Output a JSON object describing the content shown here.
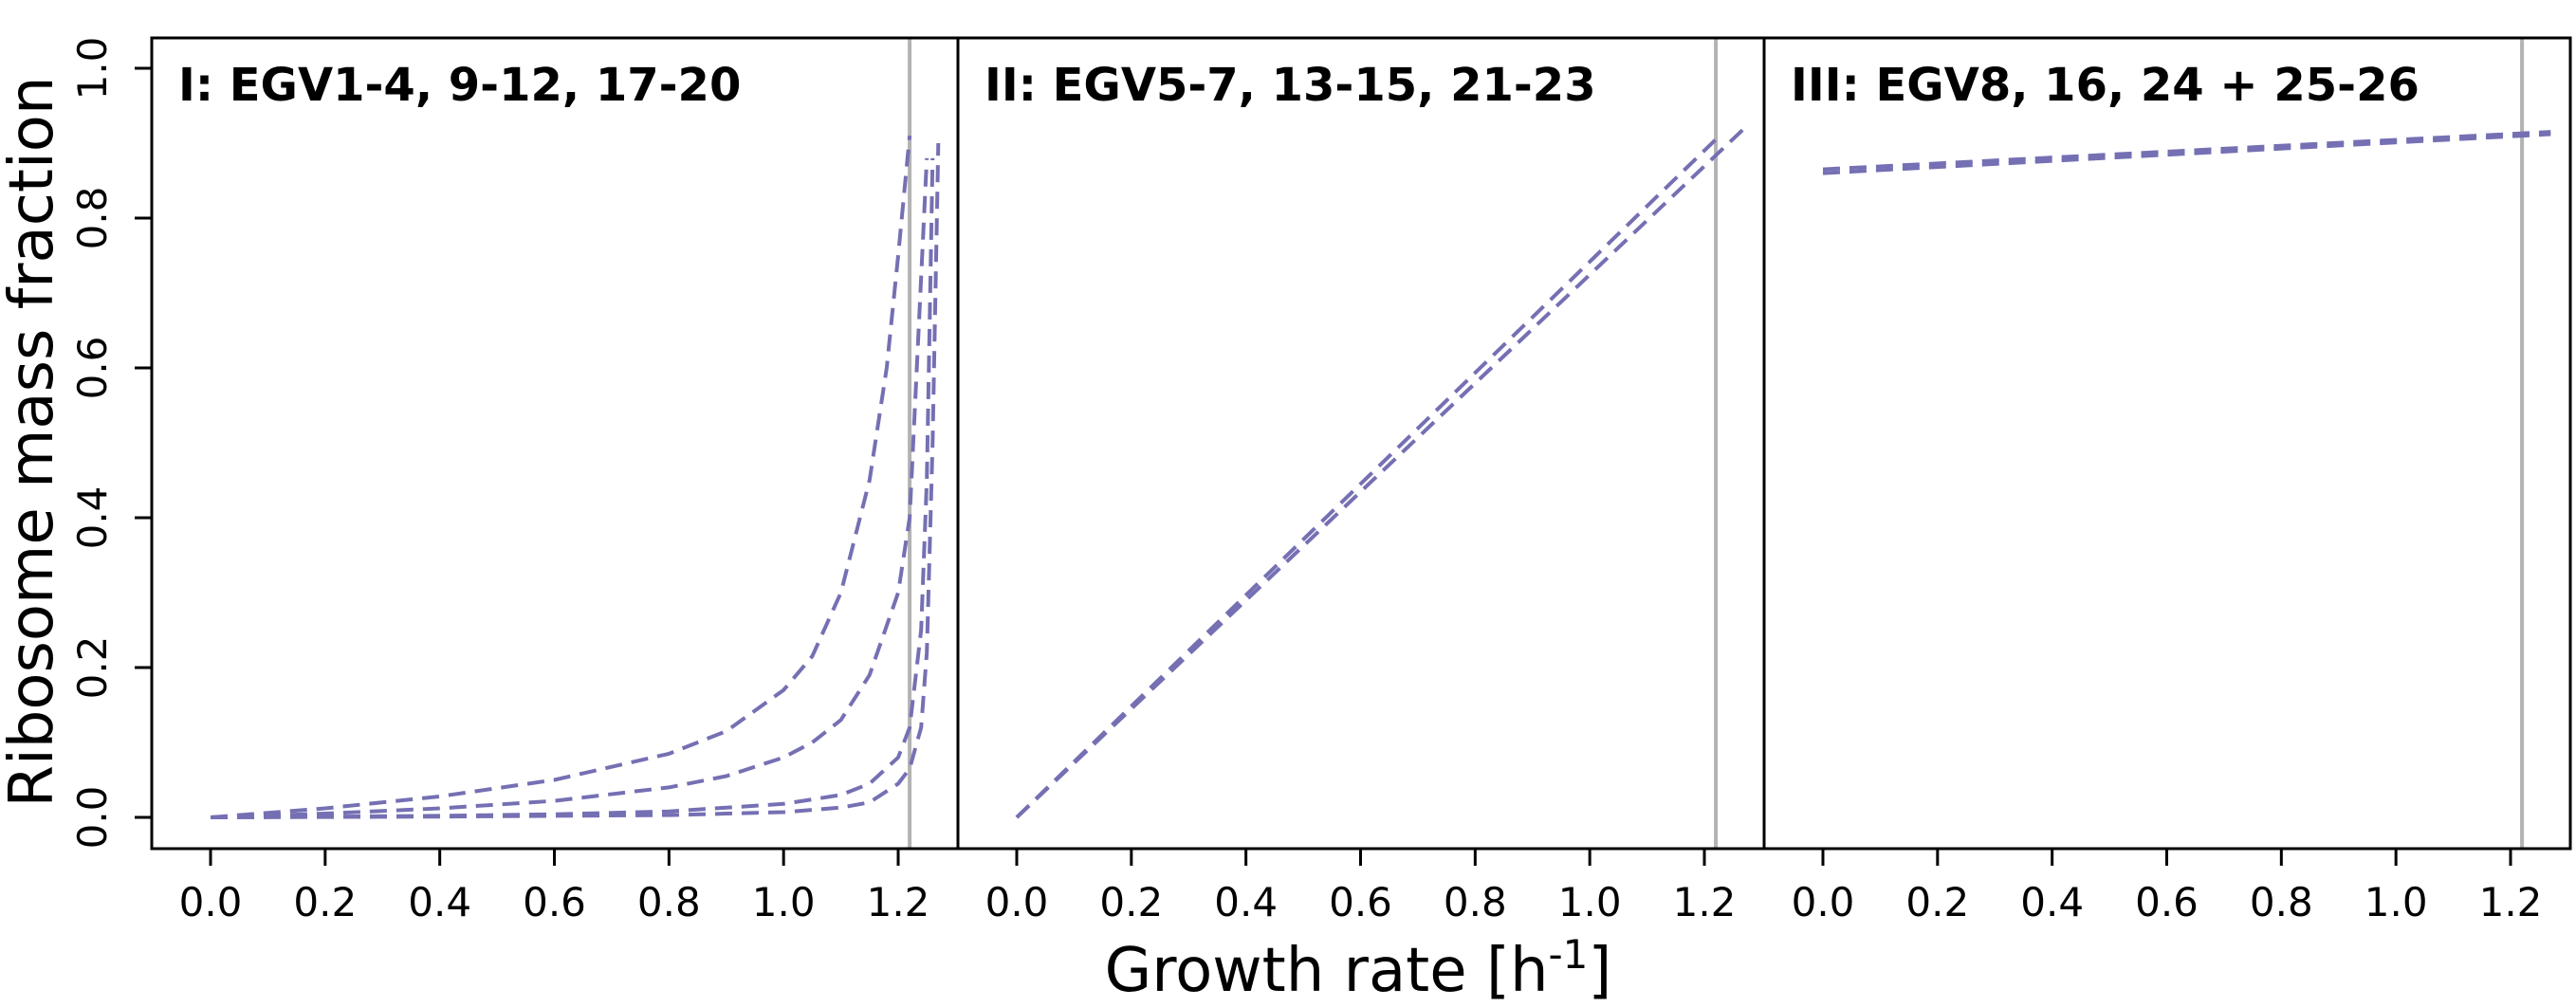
{
  "figure": {
    "xlabel": "Growth rate [h",
    "xlabel_superscript": "-1",
    "xlabel_suffix": "]",
    "ylabel": "Ribosome mass fraction"
  },
  "colors": {
    "curve": "#7570b3",
    "reference_line": "#b3b3b3",
    "axes": "#000000"
  },
  "chart_data": [
    {
      "type": "line",
      "title": "I: EGV1-4, 9-12, 17-20",
      "xlim": [
        0.0,
        1.3
      ],
      "ylim": [
        0.0,
        1.0
      ],
      "x_ticks": [
        "0.0",
        "0.2",
        "0.4",
        "0.6",
        "0.8",
        "1.0",
        "1.2"
      ],
      "y_ticks": [
        "0.0",
        "0.2",
        "0.4",
        "0.6",
        "0.8",
        "1.0"
      ],
      "reference_line_x": 1.22,
      "line_style": "dashed",
      "series": [
        {
          "x": [
            0.0,
            0.2,
            0.4,
            0.6,
            0.8,
            0.9,
            1.0,
            1.05,
            1.1,
            1.15,
            1.18,
            1.2,
            1.22
          ],
          "values": [
            0.0,
            0.012,
            0.028,
            0.05,
            0.085,
            0.115,
            0.17,
            0.215,
            0.3,
            0.45,
            0.6,
            0.75,
            0.91
          ]
        },
        {
          "x": [
            0.0,
            0.2,
            0.4,
            0.6,
            0.8,
            0.9,
            1.0,
            1.05,
            1.1,
            1.15,
            1.2,
            1.22,
            1.25
          ],
          "values": [
            0.0,
            0.005,
            0.012,
            0.022,
            0.04,
            0.055,
            0.08,
            0.1,
            0.13,
            0.19,
            0.3,
            0.4,
            0.88
          ]
        },
        {
          "x": [
            0.0,
            0.2,
            0.4,
            0.6,
            0.8,
            1.0,
            1.1,
            1.15,
            1.2,
            1.22,
            1.24,
            1.25,
            1.26
          ],
          "values": [
            0.0,
            0.001,
            0.002,
            0.004,
            0.008,
            0.018,
            0.03,
            0.045,
            0.08,
            0.12,
            0.25,
            0.45,
            0.88
          ]
        },
        {
          "x": [
            0.0,
            0.4,
            0.8,
            1.0,
            1.1,
            1.15,
            1.2,
            1.22,
            1.24,
            1.25,
            1.26,
            1.27
          ],
          "values": [
            0.0,
            0.001,
            0.003,
            0.007,
            0.013,
            0.02,
            0.045,
            0.065,
            0.12,
            0.22,
            0.5,
            0.9
          ]
        }
      ]
    },
    {
      "type": "line",
      "title": "II: EGV5-7, 13-15, 21-23",
      "xlim": [
        0.0,
        1.3
      ],
      "ylim": [
        0.0,
        1.0
      ],
      "x_ticks": [
        "0.0",
        "0.2",
        "0.4",
        "0.6",
        "0.8",
        "1.0",
        "1.2"
      ],
      "y_ticks": [],
      "reference_line_x": 1.22,
      "line_style": "dashed",
      "series": [
        {
          "x": [
            0.0,
            1.22
          ],
          "values": [
            0.0,
            0.905
          ]
        },
        {
          "x": [
            0.0,
            1.27
          ],
          "values": [
            0.0,
            0.92
          ]
        }
      ]
    },
    {
      "type": "line",
      "title": "III: EGV8, 16, 24 + 25-26",
      "xlim": [
        0.0,
        1.3
      ],
      "ylim": [
        0.0,
        1.0
      ],
      "x_ticks": [
        "0.0",
        "0.2",
        "0.4",
        "0.6",
        "0.8",
        "1.0",
        "1.2"
      ],
      "y_ticks": [],
      "reference_line_x": 1.22,
      "line_style": "dashed",
      "series": [
        {
          "x": [
            0.0,
            1.27
          ],
          "values": [
            0.865,
            0.915
          ]
        },
        {
          "x": [
            0.0,
            1.27
          ],
          "values": [
            0.86,
            0.912
          ]
        }
      ]
    }
  ]
}
